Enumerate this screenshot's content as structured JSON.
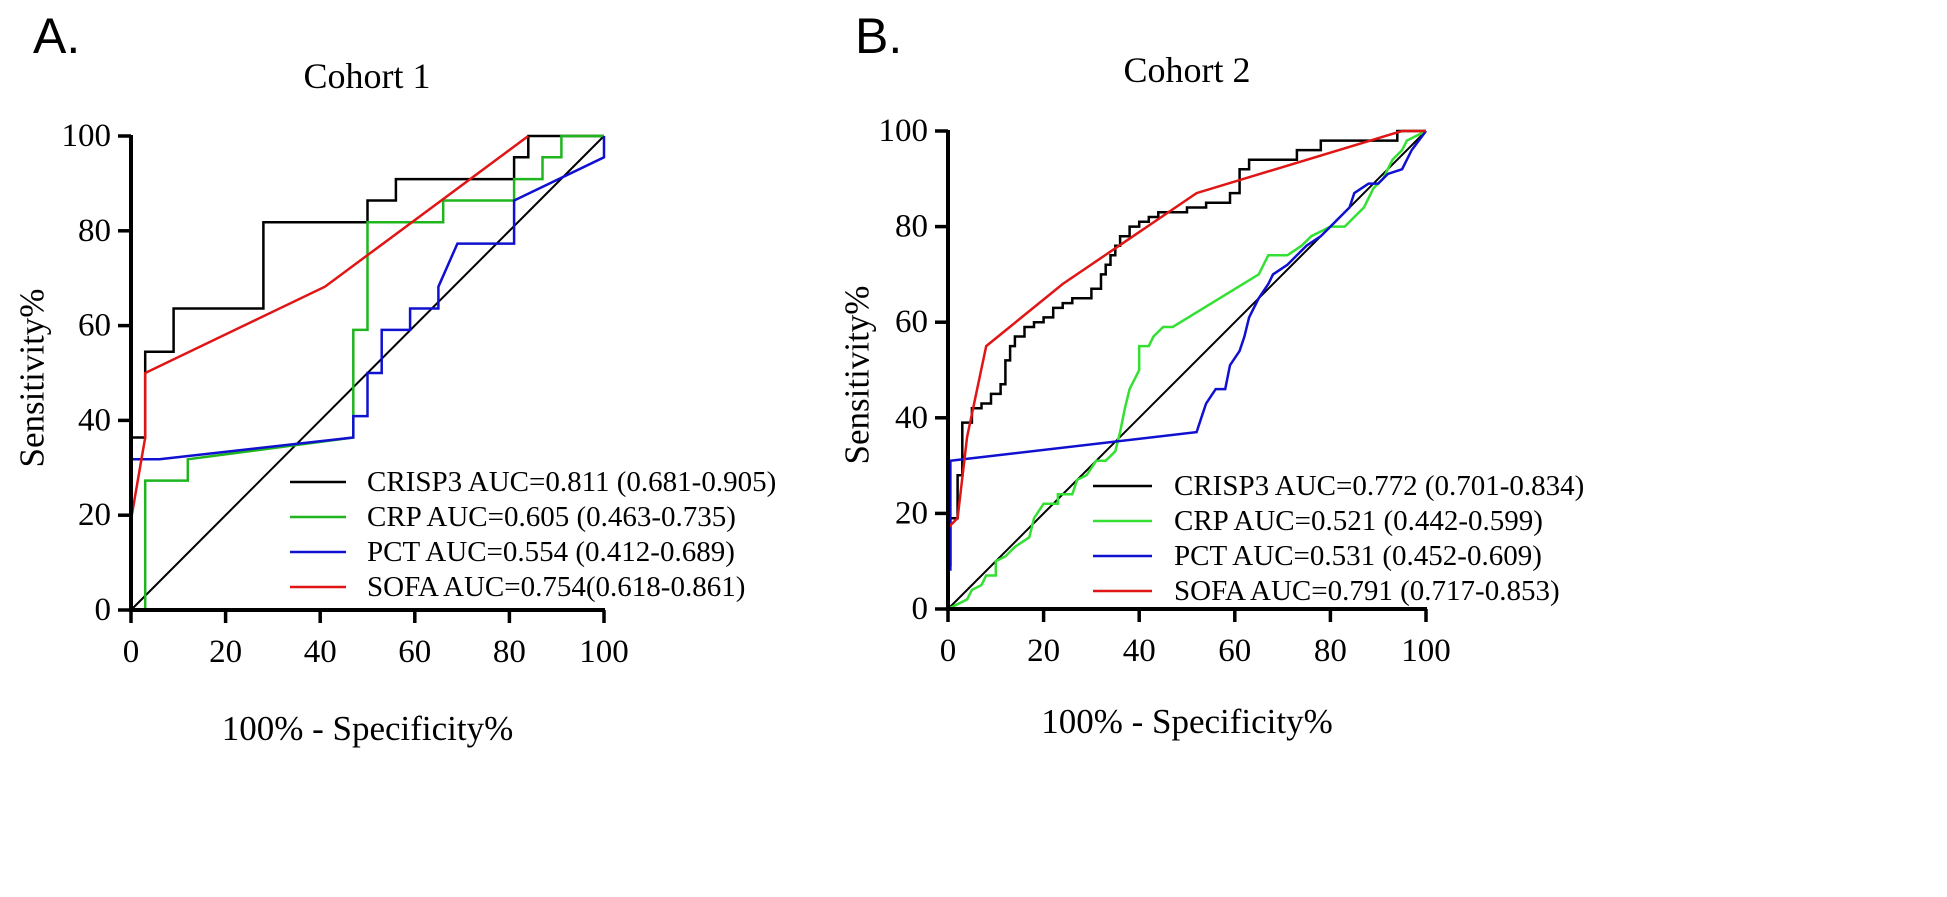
{
  "panel_letters": [
    "A.",
    "B."
  ],
  "chart_data": [
    {
      "type": "line",
      "panel": "A.",
      "title": "Cohort 1",
      "xlabel": "100% - Specificity%",
      "ylabel": "Sensitivity%",
      "xlim": [
        0,
        100
      ],
      "ylim": [
        0,
        100
      ],
      "xticks": [
        "0",
        "20",
        "40",
        "60",
        "80",
        "100"
      ],
      "yticks": [
        "0",
        "20",
        "40",
        "60",
        "80",
        "100"
      ],
      "grid": false,
      "legend_position": "bottom-right",
      "reference_line": [
        [
          0,
          0
        ],
        [
          100,
          100
        ]
      ],
      "series": [
        {
          "name": "CRISP3",
          "label": "CRISP3 AUC=0.811 (0.681-0.905)",
          "color": "#000000",
          "points": [
            [
              0,
              0
            ],
            [
              0,
              36.4
            ],
            [
              3,
              36.4
            ],
            [
              3,
              54.5
            ],
            [
              9,
              54.5
            ],
            [
              9,
              63.6
            ],
            [
              28,
              63.6
            ],
            [
              28,
              81.8
            ],
            [
              50,
              81.8
            ],
            [
              50,
              86.4
            ],
            [
              56,
              86.4
            ],
            [
              56,
              90.9
            ],
            [
              81,
              90.9
            ],
            [
              81,
              95.5
            ],
            [
              84,
              95.5
            ],
            [
              84,
              100
            ],
            [
              100,
              100
            ]
          ]
        },
        {
          "name": "CRP",
          "label": "CRP AUC=0.605 (0.463-0.735)",
          "color": "#1fb51f",
          "points": [
            [
              3,
              0
            ],
            [
              3,
              27.3
            ],
            [
              12,
              27.3
            ],
            [
              12,
              31.8
            ],
            [
              47,
              36.4
            ],
            [
              47,
              59.1
            ],
            [
              50,
              59.1
            ],
            [
              50,
              81.8
            ],
            [
              66,
              81.8
            ],
            [
              66,
              86.4
            ],
            [
              81,
              86.4
            ],
            [
              81,
              90.9
            ],
            [
              87,
              90.9
            ],
            [
              87,
              95.5
            ],
            [
              91,
              95.5
            ],
            [
              91,
              100
            ],
            [
              100,
              100
            ]
          ]
        },
        {
          "name": "PCT",
          "label": "PCT AUC=0.554 (0.412-0.689)",
          "color": "#1010d0",
          "points": [
            [
              0,
              31.8
            ],
            [
              6,
              31.8
            ],
            [
              47,
              36.4
            ],
            [
              47,
              40.9
            ],
            [
              50,
              40.9
            ],
            [
              50,
              50
            ],
            [
              53,
              50
            ],
            [
              53,
              59.1
            ],
            [
              59,
              59.1
            ],
            [
              59,
              63.6
            ],
            [
              65,
              63.6
            ],
            [
              65,
              68.2
            ],
            [
              69,
              77.3
            ],
            [
              81,
              77.3
            ],
            [
              81,
              86.4
            ],
            [
              100,
              95.5
            ],
            [
              100,
              100
            ]
          ]
        },
        {
          "name": "SOFA",
          "label": "SOFA AUC=0.754(0.618-0.861)",
          "color": "#e01515",
          "points": [
            [
              0,
              19
            ],
            [
              3,
              36.4
            ],
            [
              3,
              50
            ],
            [
              41,
              68.2
            ],
            [
              84,
              100
            ]
          ]
        }
      ]
    },
    {
      "type": "line",
      "panel": "B.",
      "title": "Cohort 2",
      "xlabel": "100% - Specificity%",
      "ylabel": "Sensitivity%",
      "xlim": [
        0,
        100
      ],
      "ylim": [
        0,
        100
      ],
      "xticks": [
        "0",
        "20",
        "40",
        "60",
        "80",
        "100"
      ],
      "yticks": [
        "0",
        "20",
        "40",
        "60",
        "80",
        "100"
      ],
      "grid": false,
      "legend_position": "bottom-right",
      "reference_line": [
        [
          0,
          0
        ],
        [
          100,
          100
        ]
      ],
      "series": [
        {
          "name": "CRISP3",
          "label": "CRISP3 AUC=0.772 (0.701-0.834)",
          "color": "#000000",
          "points": [
            [
              0.5,
              9
            ],
            [
              0.5,
              19
            ],
            [
              2,
              19
            ],
            [
              2,
              28
            ],
            [
              3,
              28
            ],
            [
              3,
              39
            ],
            [
              5,
              39
            ],
            [
              5,
              42
            ],
            [
              7,
              42
            ],
            [
              7,
              43
            ],
            [
              9,
              43
            ],
            [
              9,
              45
            ],
            [
              11,
              45
            ],
            [
              11,
              47
            ],
            [
              12,
              47
            ],
            [
              12,
              52
            ],
            [
              13,
              52
            ],
            [
              13,
              55
            ],
            [
              14,
              55
            ],
            [
              14,
              57
            ],
            [
              16,
              57
            ],
            [
              16,
              59
            ],
            [
              18,
              59
            ],
            [
              18,
              60
            ],
            [
              20,
              60
            ],
            [
              20,
              61
            ],
            [
              22,
              61
            ],
            [
              22,
              63
            ],
            [
              24,
              63
            ],
            [
              24,
              64
            ],
            [
              26,
              64
            ],
            [
              26,
              65
            ],
            [
              30,
              65
            ],
            [
              30,
              67
            ],
            [
              32,
              67
            ],
            [
              32,
              70
            ],
            [
              33,
              70
            ],
            [
              33,
              72
            ],
            [
              34,
              72
            ],
            [
              34,
              74
            ],
            [
              35,
              74
            ],
            [
              35,
              76
            ],
            [
              36,
              76
            ],
            [
              36,
              78
            ],
            [
              38,
              78
            ],
            [
              38,
              80
            ],
            [
              40,
              80
            ],
            [
              40,
              81
            ],
            [
              42,
              81
            ],
            [
              42,
              82
            ],
            [
              44,
              82
            ],
            [
              44,
              83
            ],
            [
              50,
              83
            ],
            [
              50,
              84
            ],
            [
              54,
              84
            ],
            [
              54,
              85
            ],
            [
              59,
              85
            ],
            [
              59,
              87
            ],
            [
              61,
              87
            ],
            [
              61,
              92
            ],
            [
              63,
              92
            ],
            [
              63,
              94
            ],
            [
              73,
              94
            ],
            [
              73,
              96
            ],
            [
              78,
              96
            ],
            [
              78,
              98
            ],
            [
              94,
              98
            ],
            [
              94,
              100
            ],
            [
              100,
              100
            ]
          ]
        },
        {
          "name": "CRP",
          "label": "CRP AUC=0.521 (0.442-0.599)",
          "color": "#33e033",
          "points": [
            [
              0,
              0
            ],
            [
              4,
              2
            ],
            [
              5,
              4
            ],
            [
              7,
              5
            ],
            [
              8,
              7
            ],
            [
              10,
              7
            ],
            [
              10,
              10
            ],
            [
              12,
              11
            ],
            [
              14,
              13
            ],
            [
              17,
              15
            ],
            [
              18,
              19
            ],
            [
              20,
              22
            ],
            [
              23,
              22
            ],
            [
              23,
              24
            ],
            [
              26,
              24
            ],
            [
              27,
              27
            ],
            [
              29,
              28
            ],
            [
              31,
              31
            ],
            [
              33,
              31
            ],
            [
              35,
              33
            ],
            [
              36,
              37
            ],
            [
              37,
              42
            ],
            [
              38,
              46
            ],
            [
              39,
              48
            ],
            [
              40,
              50
            ],
            [
              40,
              55
            ],
            [
              42,
              55
            ],
            [
              43,
              57
            ],
            [
              45,
              59
            ],
            [
              47,
              59
            ],
            [
              65,
              70
            ],
            [
              67,
              74
            ],
            [
              71,
              74
            ],
            [
              74,
              76
            ],
            [
              76,
              78
            ],
            [
              80,
              80
            ],
            [
              83,
              80
            ],
            [
              85,
              82
            ],
            [
              87,
              84
            ],
            [
              89,
              88
            ],
            [
              91,
              90
            ],
            [
              93,
              94
            ],
            [
              95,
              96
            ],
            [
              96,
              98
            ],
            [
              100,
              100
            ]
          ]
        },
        {
          "name": "PCT",
          "label": "PCT AUC=0.531 (0.452-0.609)",
          "color": "#1010d0",
          "points": [
            [
              0.5,
              8
            ],
            [
              0.5,
              31
            ],
            [
              52,
              37
            ],
            [
              53,
              40
            ],
            [
              54,
              43
            ],
            [
              56,
              46
            ],
            [
              58,
              46
            ],
            [
              59,
              51
            ],
            [
              61,
              54
            ],
            [
              62,
              57
            ],
            [
              63,
              61
            ],
            [
              65,
              65
            ],
            [
              67,
              68
            ],
            [
              68,
              70
            ],
            [
              71,
              72
            ],
            [
              73,
              74
            ],
            [
              75,
              76
            ],
            [
              78,
              78
            ],
            [
              80,
              80
            ],
            [
              82,
              82
            ],
            [
              84,
              84
            ],
            [
              85,
              87
            ],
            [
              88,
              89
            ],
            [
              90,
              89
            ],
            [
              92,
              91
            ],
            [
              95,
              92
            ],
            [
              97,
              96
            ],
            [
              100,
              100
            ]
          ]
        },
        {
          "name": "SOFA",
          "label": "SOFA AUC=0.791 (0.717-0.853)",
          "color": "#e01515",
          "points": [
            [
              0,
              17
            ],
            [
              2,
              19
            ],
            [
              4,
              36
            ],
            [
              8,
              55
            ],
            [
              24,
              68
            ],
            [
              52,
              87
            ],
            [
              95,
              100
            ],
            [
              100,
              100
            ]
          ]
        }
      ]
    }
  ]
}
